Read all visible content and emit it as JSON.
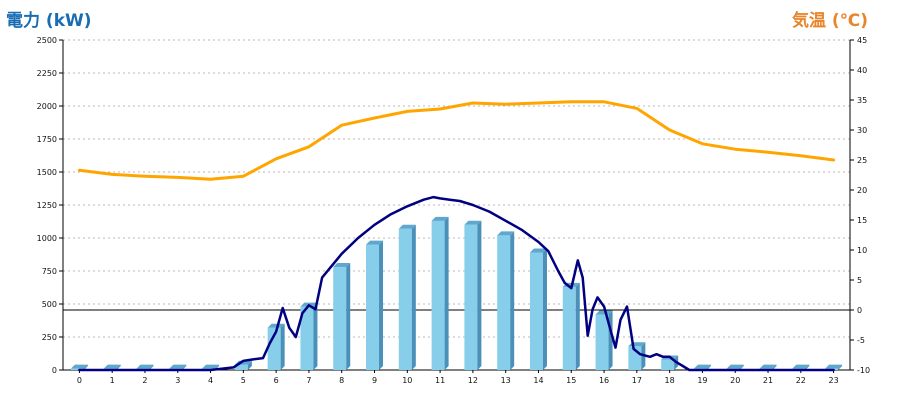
{
  "chart_data": {
    "type": "bar+line",
    "y_left_label": "電力 (kW)",
    "y_right_label": "気温 (℃)",
    "categories": [
      "0",
      "1",
      "2",
      "3",
      "4",
      "5",
      "6",
      "7",
      "8",
      "9",
      "10",
      "11",
      "12",
      "13",
      "14",
      "15",
      "16",
      "17",
      "18",
      "19",
      "20",
      "21",
      "22",
      "23"
    ],
    "y_left_ticks": [
      "0",
      "250",
      "500",
      "750",
      "1000",
      "1250",
      "1500",
      "1750",
      "2000",
      "2250",
      "2500"
    ],
    "y_right_ticks": [
      "-10",
      "-5",
      "0",
      "5",
      "10",
      "15",
      "20",
      "25",
      "30",
      "35",
      "40",
      "45"
    ],
    "ylim_left": [
      0,
      2500
    ],
    "ylim_right": [
      -10,
      45
    ],
    "grid": true,
    "series": [
      {
        "kind": "bar",
        "axis": "left",
        "color": "#87ceeb",
        "values": [
          10,
          10,
          10,
          10,
          10,
          40,
          320,
          480,
          780,
          950,
          1070,
          1130,
          1100,
          1020,
          890,
          630,
          420,
          180,
          80,
          10,
          10,
          10,
          10,
          10
        ]
      },
      {
        "kind": "line",
        "axis": "left",
        "color": "#000080",
        "x": [
          0,
          1,
          2,
          3,
          4,
          4.7,
          5,
          5.3,
          5.6,
          5.8,
          6.0,
          6.2,
          6.4,
          6.6,
          6.8,
          7.0,
          7.2,
          7.4,
          7.6,
          8.0,
          8.5,
          9.0,
          9.5,
          10.0,
          10.5,
          10.8,
          11.0,
          11.3,
          11.6,
          12.0,
          12.5,
          13.0,
          13.5,
          14.0,
          14.3,
          14.6,
          14.8,
          15.0,
          15.2,
          15.35,
          15.5,
          15.65,
          15.8,
          16.0,
          16.2,
          16.35,
          16.5,
          16.7,
          16.9,
          17.1,
          17.4,
          17.6,
          17.8,
          18.0,
          18.2,
          18.4,
          18.6,
          19.0,
          20.0,
          21.0,
          22.0,
          23.0
        ],
        "values": [
          0,
          0,
          0,
          0,
          0,
          20,
          70,
          80,
          90,
          200,
          290,
          470,
          320,
          250,
          430,
          490,
          460,
          700,
          760,
          880,
          1000,
          1100,
          1180,
          1240,
          1290,
          1310,
          1300,
          1290,
          1280,
          1250,
          1200,
          1130,
          1060,
          970,
          900,
          750,
          660,
          620,
          830,
          700,
          260,
          460,
          550,
          480,
          300,
          170,
          380,
          480,
          160,
          120,
          100,
          120,
          100,
          100,
          60,
          30,
          0,
          0,
          0,
          0,
          0,
          0
        ]
      },
      {
        "kind": "line",
        "axis": "right",
        "color": "#ffa500",
        "x": [
          0,
          1,
          2,
          3,
          4,
          5,
          6,
          7,
          8,
          9,
          10,
          11,
          12,
          13,
          14,
          15,
          16,
          17,
          18,
          19,
          20,
          21,
          22,
          23
        ],
        "values": [
          23.3,
          22.6,
          22.3,
          22.1,
          21.8,
          22.3,
          25.2,
          27.2,
          30.8,
          32.0,
          33.1,
          33.5,
          34.5,
          34.3,
          34.5,
          34.7,
          34.7,
          33.6,
          30.0,
          27.7,
          26.8,
          26.3,
          25.7,
          25.0
        ]
      }
    ],
    "reference_line": {
      "axis": "right",
      "value": 0
    }
  }
}
